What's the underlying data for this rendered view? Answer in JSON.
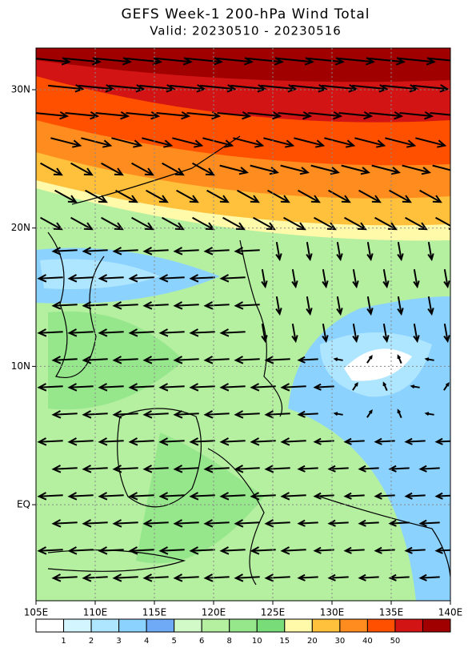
{
  "header": {
    "title": "GEFS Week-1 200-hPa Wind Total",
    "subtitle": "Valid: 20230510 - 20230516"
  },
  "map": {
    "lat_labels": [
      "30N",
      "20N",
      "10N",
      "EQ"
    ],
    "lon_labels": [
      "105E",
      "110E",
      "115E",
      "120E",
      "125E",
      "130E",
      "135E",
      "140E"
    ]
  },
  "colorbar": {
    "colors": [
      "#ffffff",
      "#d2f5ff",
      "#afe6ff",
      "#8cd2ff",
      "#6eaaf5",
      "#d2fac8",
      "#b4f0a0",
      "#96e68c",
      "#78dc78",
      "#fffaaa",
      "#ffc03c",
      "#ff8c1e",
      "#ff5000",
      "#d21414",
      "#a00000"
    ],
    "labels": [
      1,
      2,
      3,
      4,
      5,
      6,
      8,
      10,
      15,
      20,
      30,
      40,
      50
    ]
  }
}
